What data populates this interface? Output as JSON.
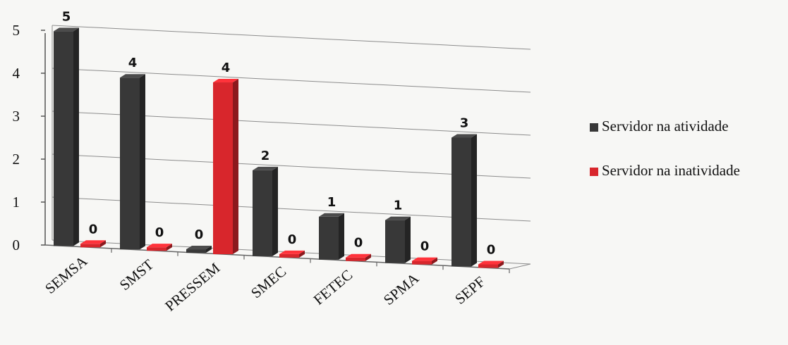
{
  "chart_data": {
    "type": "bar",
    "categories": [
      "SEMSA",
      "SMST",
      "PRESSEM",
      "SMEC",
      "FETEC",
      "SPMA",
      "SEPF"
    ],
    "series": [
      {
        "name": "Servidor na atividade",
        "values": [
          5,
          4,
          0,
          2,
          1,
          1,
          3
        ],
        "color": "#383838"
      },
      {
        "name": "Servidor na inatividade",
        "values": [
          0,
          0,
          4,
          0,
          0,
          0,
          0
        ],
        "color": "#d8262c"
      }
    ],
    "yticks": [
      "0",
      "1",
      "2",
      "3",
      "4",
      "5"
    ],
    "ylim": [
      0,
      5
    ],
    "title": "",
    "xlabel": "",
    "ylabel": "",
    "grid": true,
    "legend": "right",
    "style": "3d-column"
  }
}
